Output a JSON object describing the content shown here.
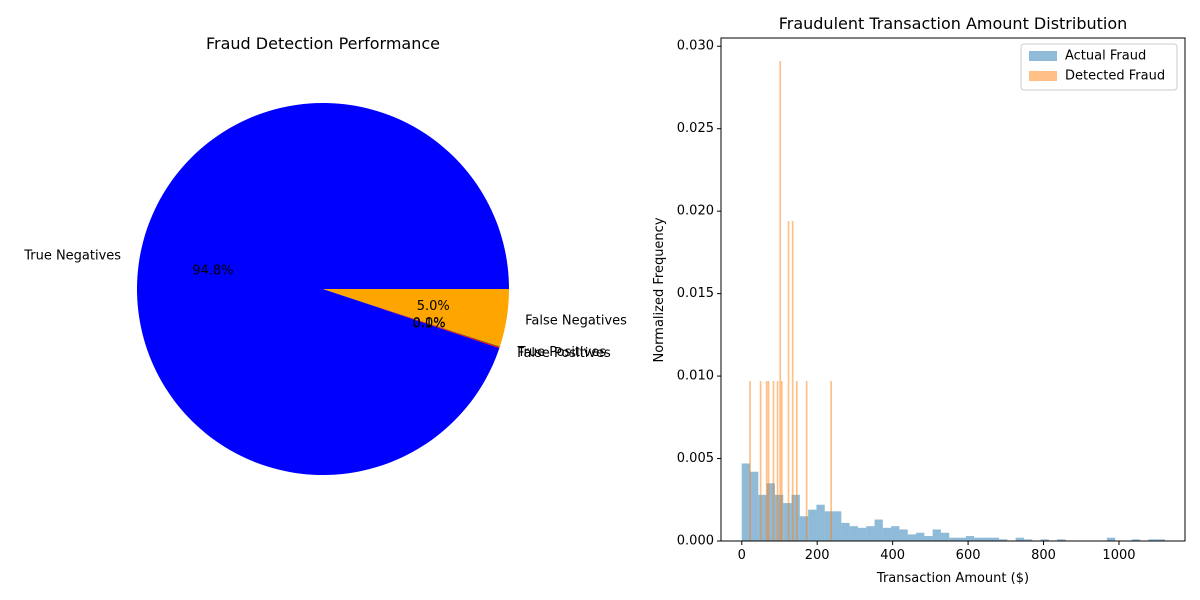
{
  "chart_data": [
    {
      "type": "pie",
      "title": "Fraud Detection Performance",
      "slices": [
        {
          "label": "True Negatives",
          "value": 94.8,
          "pct_label": "94.8%",
          "color": "#0000ff"
        },
        {
          "label": "False Positives",
          "value": 0.1,
          "pct_label": "0.1%",
          "color": "#ff0000"
        },
        {
          "label": "True Positives",
          "value": 0.05,
          "pct_label": "0.0%",
          "color": "#008000"
        },
        {
          "label": "False Negatives",
          "value": 5.0,
          "pct_label": "5.0%",
          "color": "#ffa500"
        }
      ],
      "start_angle_deg": 0,
      "direction": "counterclockwise"
    },
    {
      "type": "histogram",
      "title": "Fraudulent Transaction Amount Distribution",
      "xlabel": "Transaction Amount ($)",
      "ylabel": "Normalized Frequency",
      "xlim": [
        -55,
        1175
      ],
      "ylim": [
        0,
        0.0305
      ],
      "xticks": [
        0,
        200,
        400,
        600,
        800,
        1000
      ],
      "yticks": [
        0.0,
        0.005,
        0.01,
        0.015,
        0.02,
        0.025,
        0.03
      ],
      "ytick_labels": [
        "0.000",
        "0.005",
        "0.010",
        "0.015",
        "0.020",
        "0.025",
        "0.030"
      ],
      "legend_position": "upper-right",
      "series": [
        {
          "name": "Actual Fraud",
          "color": "#1f77b4",
          "alpha": 0.5,
          "bin_start": 0,
          "bin_width": 22,
          "values": [
            0.0047,
            0.0042,
            0.0028,
            0.0035,
            0.0028,
            0.0023,
            0.0028,
            0.0015,
            0.0019,
            0.0022,
            0.0018,
            0.0018,
            0.0011,
            0.0009,
            0.0008,
            0.0009,
            0.0013,
            0.0008,
            0.0009,
            0.0007,
            0.0004,
            0.0005,
            0.0003,
            0.0007,
            0.0005,
            0.0002,
            0.0002,
            0.0003,
            0.0002,
            0.0002,
            0.0002,
            0.0001,
            0.0,
            0.0002,
            0.0001,
            0.0,
            0.0001,
            0.0,
            0.0001,
            0.0,
            0.0,
            0.0,
            0.0,
            0.0,
            0.0002,
            0.0,
            0.0,
            0.0001,
            0.0,
            0.0001,
            0.0001
          ]
        },
        {
          "name": "Detected Fraud",
          "color": "#ff7f0e",
          "alpha": 0.5,
          "bin_width": 4.4,
          "bars": [
            {
              "x": 22,
              "y": 0.0097
            },
            {
              "x": 50,
              "y": 0.0097
            },
            {
              "x": 66,
              "y": 0.0097
            },
            {
              "x": 71,
              "y": 0.0097
            },
            {
              "x": 84,
              "y": 0.0097
            },
            {
              "x": 95,
              "y": 0.0097
            },
            {
              "x": 102,
              "y": 0.0291
            },
            {
              "x": 106,
              "y": 0.0097
            },
            {
              "x": 124,
              "y": 0.0194
            },
            {
              "x": 135,
              "y": 0.0194
            },
            {
              "x": 146,
              "y": 0.0097
            },
            {
              "x": 172,
              "y": 0.0097
            },
            {
              "x": 237,
              "y": 0.0097
            }
          ]
        }
      ]
    }
  ]
}
